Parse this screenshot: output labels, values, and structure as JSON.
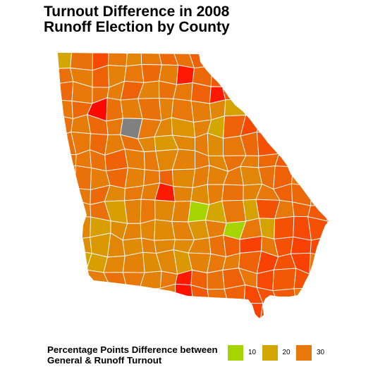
{
  "title": [
    "Turnout Difference in 2008",
    "Runoff Election by County"
  ],
  "legend": {
    "title": [
      "Percentage Points Difference between",
      "General & Runoff Turnout"
    ],
    "items": [
      {
        "label": "10",
        "color": "#a6d400"
      },
      {
        "label": "20",
        "color": "#d4a700"
      },
      {
        "label": "30",
        "color": "#e8780a"
      }
    ]
  },
  "map": {
    "color_scale": [
      {
        "value": 10,
        "color": "#a6d400"
      },
      {
        "value": 20,
        "color": "#d4a700"
      },
      {
        "value": 30,
        "color": "#e8780a"
      },
      {
        "value": 40,
        "color": "#ff2a00"
      },
      {
        "value": 45,
        "color": "#ff0000"
      }
    ],
    "na_color": "#808080",
    "county_values": [
      [
        20,
        31,
        36,
        30,
        27,
        30,
        32,
        31,
        33
      ],
      [
        31,
        29,
        33,
        28,
        30,
        32,
        29,
        42,
        32,
        34
      ],
      [
        32,
        30,
        31,
        29,
        33,
        28,
        31,
        30,
        33,
        42,
        34
      ],
      [
        30,
        32,
        44,
        31,
        29,
        31,
        28,
        30,
        29,
        27,
        21,
        33
      ],
      [
        31,
        29,
        32,
        30,
        null,
        30,
        27,
        24,
        28,
        20,
        33,
        36
      ],
      [
        31,
        30,
        32,
        29,
        31,
        27,
        23,
        27,
        29,
        26,
        30,
        32,
        35
      ],
      [
        31,
        30,
        31,
        33,
        29,
        30,
        27,
        28,
        30,
        27,
        31,
        29,
        32,
        34
      ],
      [
        31,
        29,
        32,
        28,
        30,
        33,
        27,
        29,
        28,
        30,
        27,
        31,
        33
      ],
      [
        30,
        32,
        27,
        30,
        29,
        42,
        28,
        26,
        29,
        31,
        28,
        30,
        33,
        32
      ],
      [
        29,
        31,
        22,
        28,
        30,
        27,
        28,
        10,
        20,
        30,
        21,
        35,
        30,
        33,
        34
      ],
      [
        27,
        22,
        26,
        28,
        27,
        26,
        28,
        24,
        29,
        10,
        30,
        21,
        35,
        36,
        35
      ],
      [
        25,
        23,
        27,
        26,
        28,
        27,
        26,
        28,
        31,
        33,
        37,
        30,
        35,
        37,
        36
      ],
      [
        20,
        22,
        27,
        28,
        26,
        27,
        23,
        28,
        30,
        29,
        33,
        37,
        35,
        37
      ],
      [
        29,
        31,
        30,
        28,
        30,
        42,
        33,
        31,
        33,
        30,
        36,
        34,
        35
      ],
      [
        43,
        34,
        31,
        33,
        36,
        35,
        34
      ],
      [
        37,
        36
      ]
    ]
  }
}
